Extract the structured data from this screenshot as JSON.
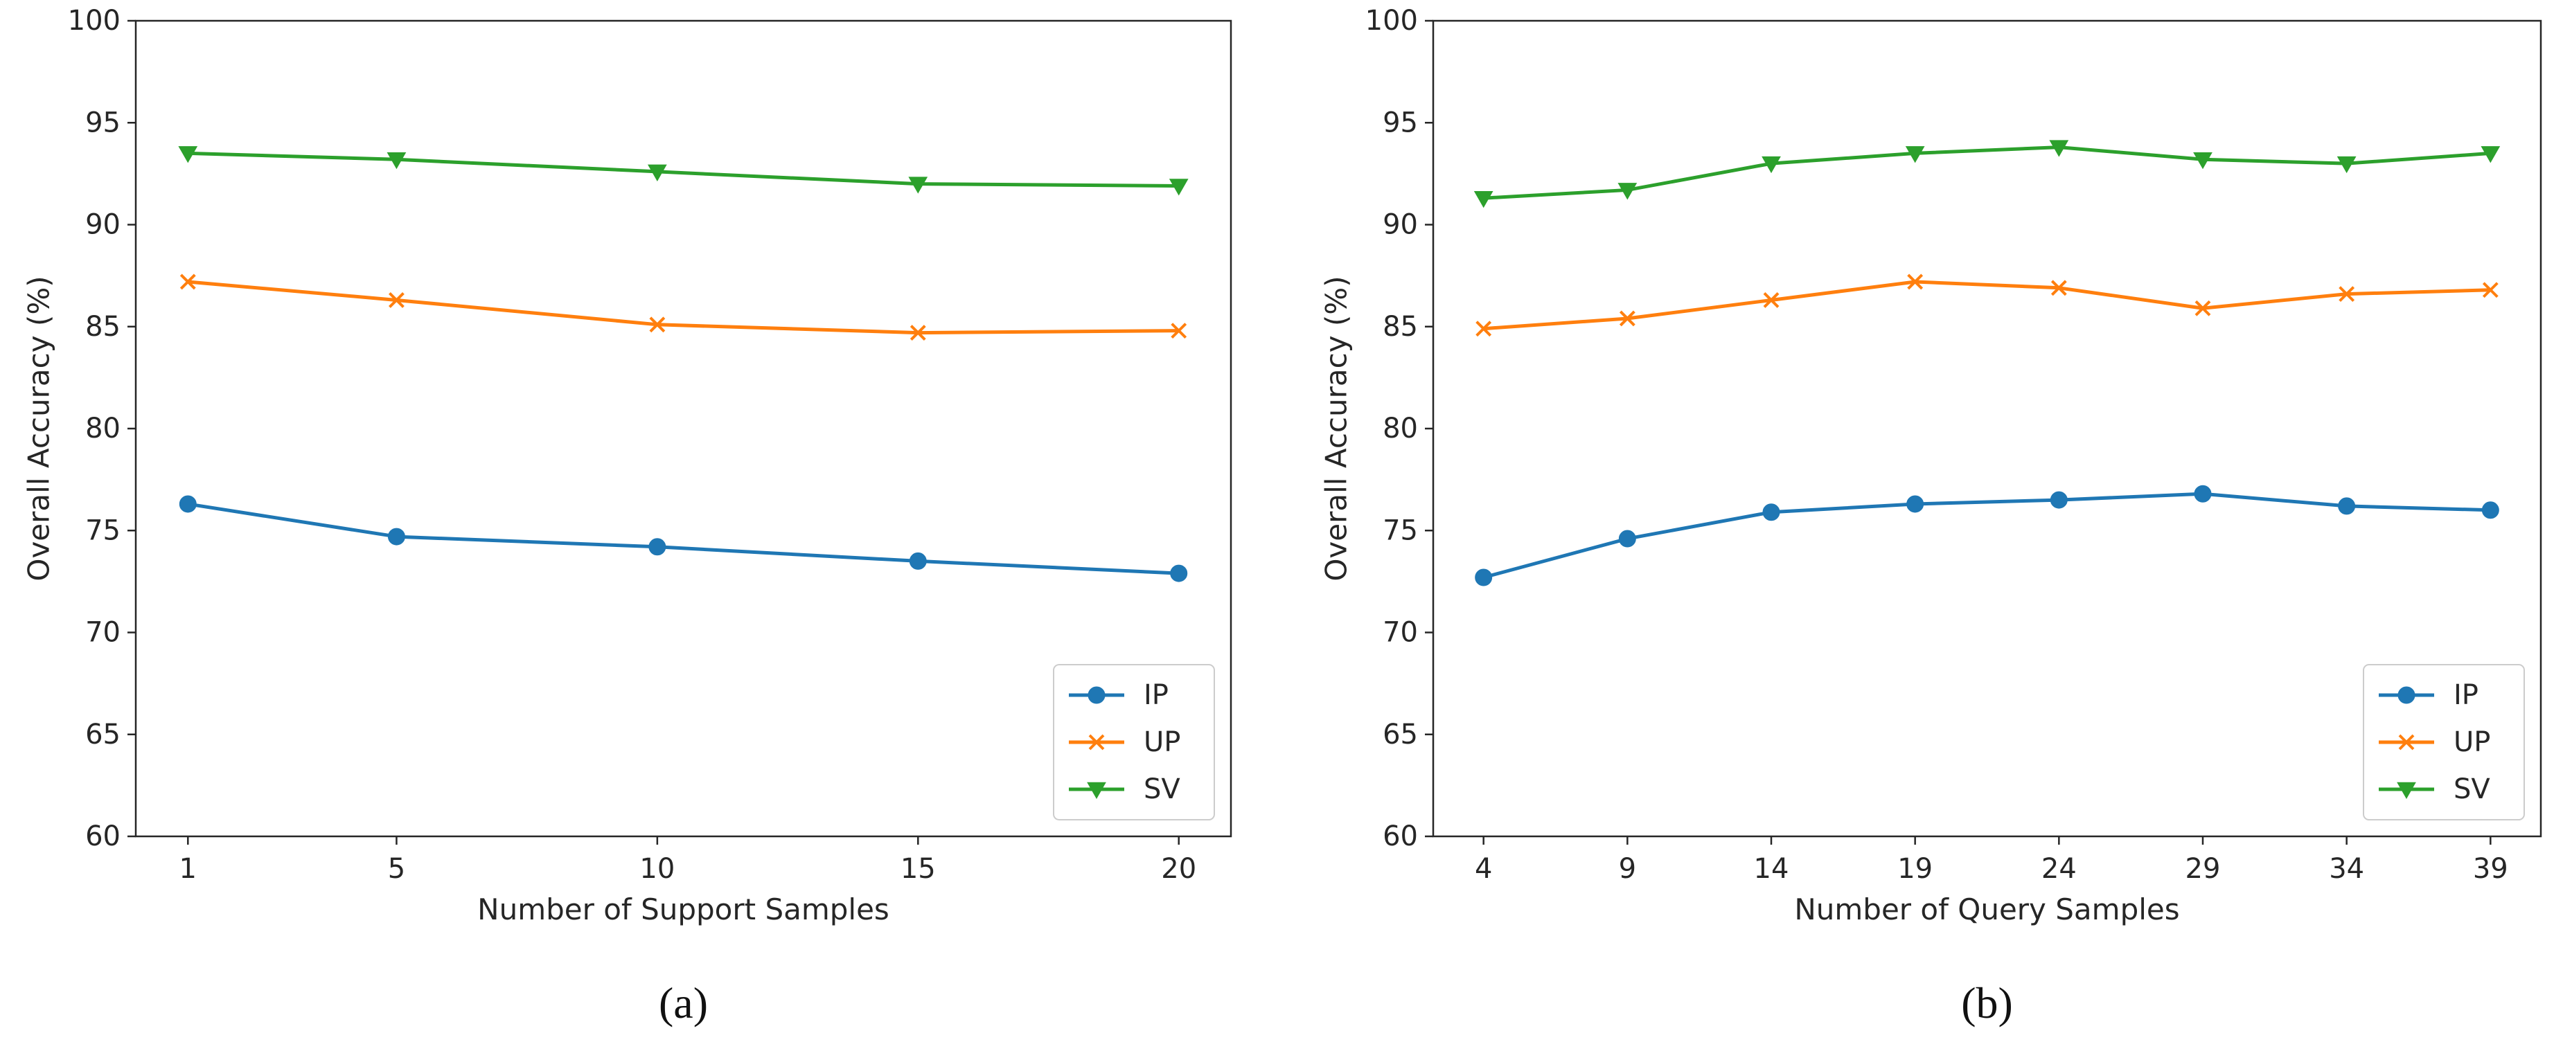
{
  "colors": {
    "IP": "#1f77b4",
    "UP": "#ff7f0e",
    "SV": "#2ca02c",
    "axis": "#262626",
    "background": "#ffffff"
  },
  "chart_data": [
    {
      "type": "line",
      "caption": "(a)",
      "title": "",
      "xlabel": "Number of Support Samples",
      "ylabel": "Overall Accuracy (%)",
      "x": [
        1,
        5,
        10,
        15,
        20
      ],
      "xlim": [
        0,
        21
      ],
      "ylim": [
        60,
        100
      ],
      "yticks": [
        60,
        65,
        70,
        75,
        80,
        85,
        90,
        95,
        100
      ],
      "grid": false,
      "legend_position": "bottom-right",
      "series": [
        {
          "name": "IP",
          "marker": "circle",
          "values": [
            76.3,
            74.7,
            74.2,
            73.5,
            72.9
          ]
        },
        {
          "name": "UP",
          "marker": "x",
          "values": [
            87.2,
            86.3,
            85.1,
            84.7,
            84.8
          ]
        },
        {
          "name": "SV",
          "marker": "triangle-down",
          "values": [
            93.5,
            93.2,
            92.6,
            92.0,
            91.9
          ]
        }
      ]
    },
    {
      "type": "line",
      "caption": "(b)",
      "title": "",
      "xlabel": "Number of Query Samples",
      "ylabel": "Overall Accuracy (%)",
      "x": [
        4,
        9,
        14,
        19,
        24,
        29,
        34,
        39
      ],
      "xlim": [
        2.25,
        40.75
      ],
      "ylim": [
        60,
        100
      ],
      "yticks": [
        60,
        65,
        70,
        75,
        80,
        85,
        90,
        95,
        100
      ],
      "grid": false,
      "legend_position": "bottom-right",
      "series": [
        {
          "name": "IP",
          "marker": "circle",
          "values": [
            72.7,
            74.6,
            75.9,
            76.3,
            76.5,
            76.8,
            76.2,
            76.0
          ]
        },
        {
          "name": "UP",
          "marker": "x",
          "values": [
            84.9,
            85.4,
            86.3,
            87.2,
            86.9,
            85.9,
            86.6,
            86.8
          ]
        },
        {
          "name": "SV",
          "marker": "triangle-down",
          "values": [
            91.3,
            91.7,
            93.0,
            93.5,
            93.8,
            93.2,
            93.0,
            93.5
          ]
        }
      ]
    }
  ]
}
